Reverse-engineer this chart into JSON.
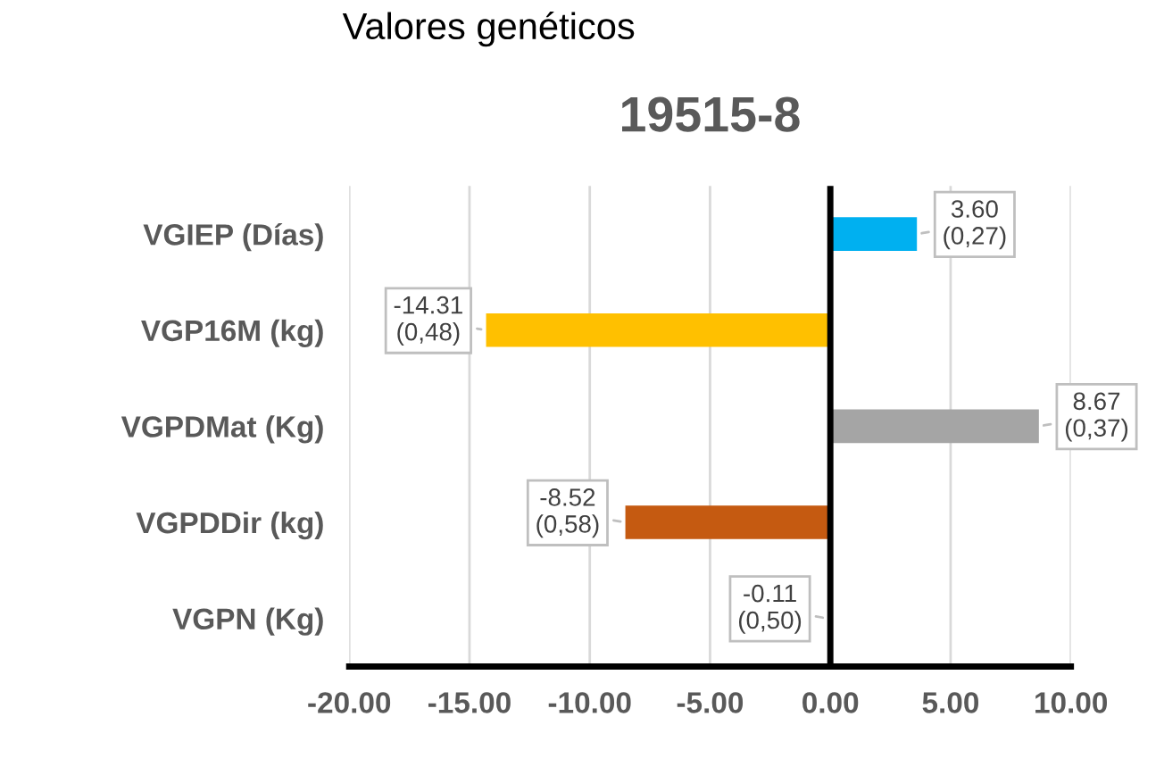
{
  "chart_data": {
    "type": "bar",
    "orientation": "horizontal",
    "title": "19515-8",
    "annotations": [
      "Valores genéticos"
    ],
    "categories": [
      "VGIEP (Días)",
      "VGP16M (kg)",
      "VGPDMat (Kg)",
      "VGPDDir (kg)",
      "VGPN (Kg)"
    ],
    "values": [
      3.6,
      -14.31,
      8.67,
      -8.52,
      -0.11
    ],
    "colors": [
      "#00b0f0",
      "#ffc000",
      "#a5a5a5",
      "#c55a11",
      "#4472c4"
    ],
    "value_labels": [
      "3.60\n(0,27)",
      "-14.31\n(0,48)",
      "8.67\n(0,37)",
      "-8.52\n(0,58)",
      "-0.11\n(0,50)"
    ],
    "xlim": [
      -20,
      10
    ],
    "xticks": [
      {
        "value": -20,
        "label": "-20.00"
      },
      {
        "value": -15,
        "label": "-15.00"
      },
      {
        "value": -10,
        "label": "-10.00"
      },
      {
        "value": -5,
        "label": "-5.00"
      },
      {
        "value": 0,
        "label": "0.00"
      },
      {
        "value": 5,
        "label": "5.00"
      },
      {
        "value": 10,
        "label": "10.00"
      }
    ],
    "grid": "x",
    "legend": false
  }
}
